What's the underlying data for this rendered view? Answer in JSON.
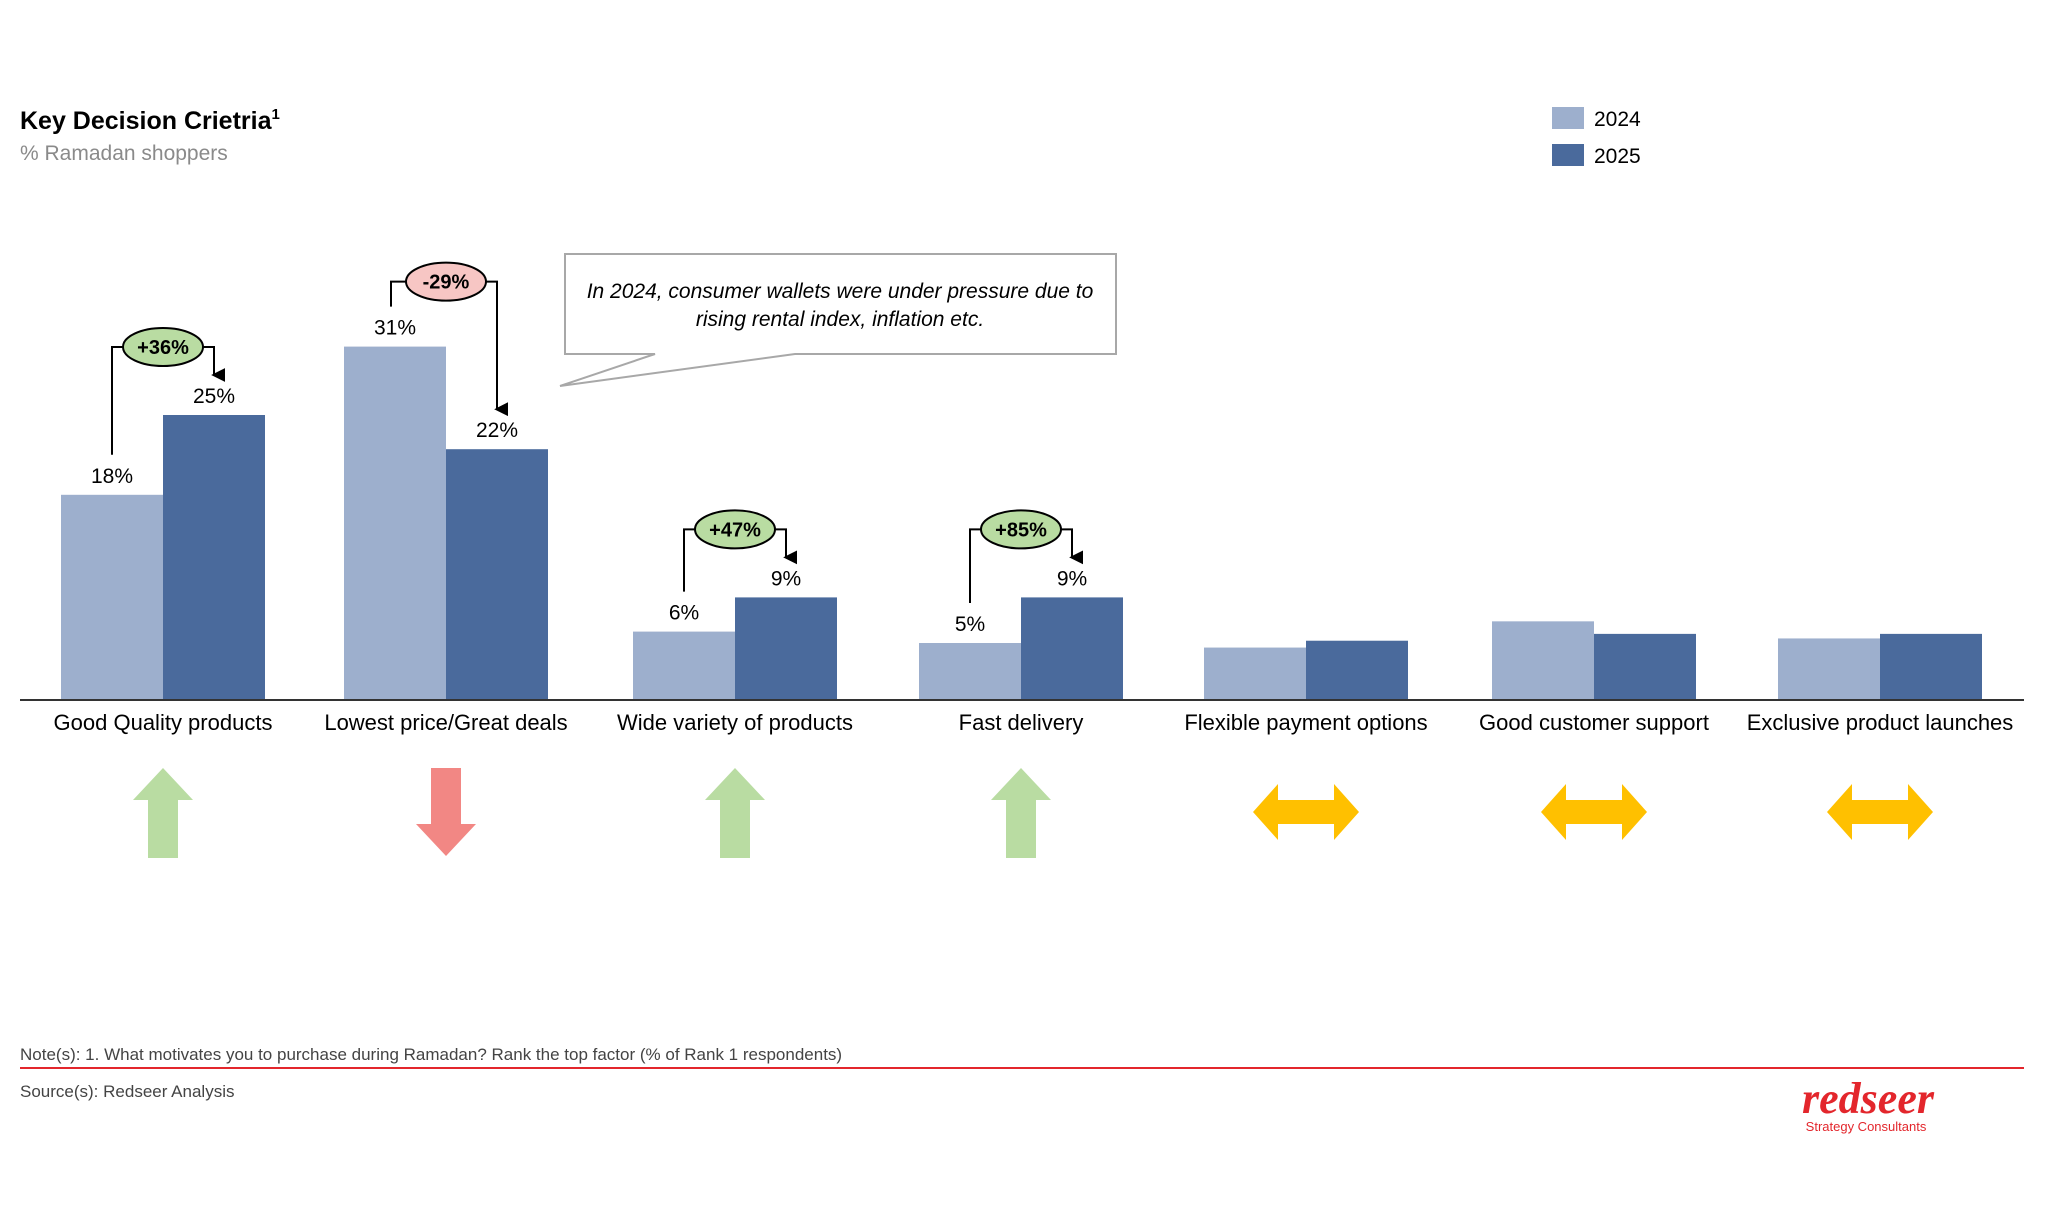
{
  "title": "Key Decision Crietria",
  "title_sup": "1",
  "subtitle": "% Ramadan shoppers",
  "callout": [
    "In 2024, consumer wallets were under pressure due to",
    "rising rental index, inflation etc."
  ],
  "note": "Note(s): 1. What motivates you to purchase during Ramadan? Rank the top factor (% of Rank 1 respondents)",
  "source": "Source(s): Redseer Analysis",
  "logo": {
    "name": "redseer",
    "tagline": "Strategy Consultants"
  },
  "colors": {
    "s2024": "#9DAFCD",
    "s2025": "#4A6A9C",
    "up": "#B9DCA2",
    "down": "#F28784",
    "flat": "#FFC000",
    "accent": "#E3262C"
  },
  "chart_data": {
    "type": "bar",
    "title": "Key Decision Crietria",
    "ylabel": "% Ramadan shoppers",
    "ylim": [
      0,
      35
    ],
    "legend_position": "top-right",
    "categories": [
      "Good Quality products",
      "Lowest price/Great deals",
      "Wide variety of products",
      "Fast delivery",
      "Flexible payment options",
      "Good customer support",
      "Exclusive product launches"
    ],
    "series": [
      {
        "name": "2024",
        "values": [
          18,
          31,
          6,
          5,
          4.6,
          6.9,
          5.4
        ],
        "labels": [
          "18%",
          "31%",
          "6%",
          "5%",
          "",
          "",
          ""
        ]
      },
      {
        "name": "2025",
        "values": [
          25,
          22,
          9,
          9,
          5.2,
          5.8,
          5.8
        ],
        "labels": [
          "25%",
          "22%",
          "9%",
          "9%",
          "",
          "",
          ""
        ]
      }
    ],
    "changes": [
      "+36%",
      "-29%",
      "+47%",
      "+85%",
      "",
      "",
      ""
    ],
    "trend": [
      "up",
      "down",
      "up",
      "up",
      "flat",
      "flat",
      "flat"
    ]
  }
}
